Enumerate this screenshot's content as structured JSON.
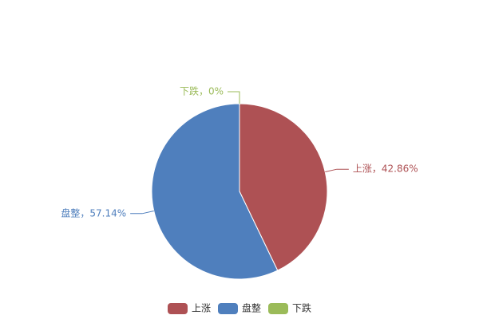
{
  "chart_data": {
    "type": "pie",
    "categories": [
      "上涨",
      "盘整",
      "下跌"
    ],
    "values": [
      42.86,
      57.14,
      0
    ],
    "value_labels": [
      "上涨，42.86%",
      "盘整，57.14%",
      "下跌，0%"
    ],
    "colors": [
      "#ae5154",
      "#4f7fbd",
      "#9bbb59"
    ]
  }
}
